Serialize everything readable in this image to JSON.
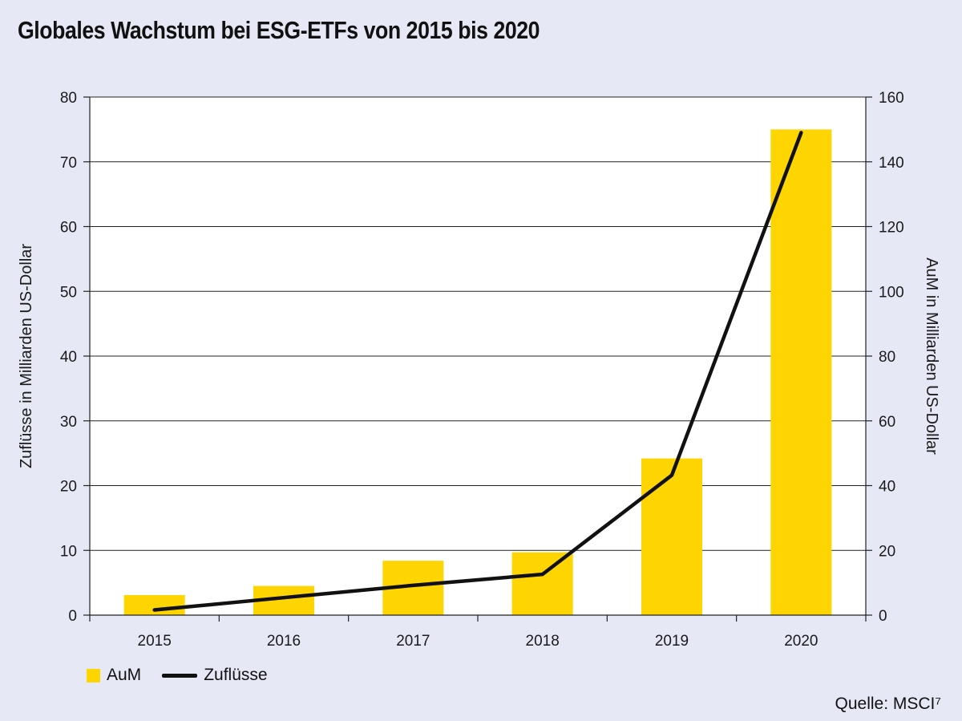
{
  "chart_data": {
    "type": "bar",
    "title": "Globales Wachstum bei ESG-ETFs von 2015 bis 2020",
    "categories": [
      "2015",
      "2016",
      "2017",
      "2018",
      "2019",
      "2020"
    ],
    "series": [
      {
        "name": "AuM",
        "type": "bar",
        "axis": "left",
        "color": "#ffd500",
        "values": [
          3.1,
          4.5,
          8.4,
          9.7,
          24.2,
          75.0
        ]
      },
      {
        "name": "Zuflüsse",
        "type": "line",
        "axis": "left",
        "color": "#111111",
        "values": [
          0.8,
          2.7,
          4.6,
          6.3,
          21.6,
          74.5
        ]
      }
    ],
    "ylabel_left": "Zuflüsse in Milliarden US-Dollar",
    "ylabel_right": "AuM in Milliarden US-Dollar",
    "ylim_left": [
      0,
      80
    ],
    "ylim_right": [
      0,
      160
    ],
    "yticks_left": [
      "0",
      "10",
      "20",
      "30",
      "40",
      "50",
      "60",
      "70",
      "80"
    ],
    "yticks_right": [
      "0",
      "20",
      "40",
      "60",
      "80",
      "100",
      "120",
      "140",
      "160"
    ],
    "grid": true,
    "legend": "bottom-left"
  },
  "source": "Quelle: MSCI⁷"
}
